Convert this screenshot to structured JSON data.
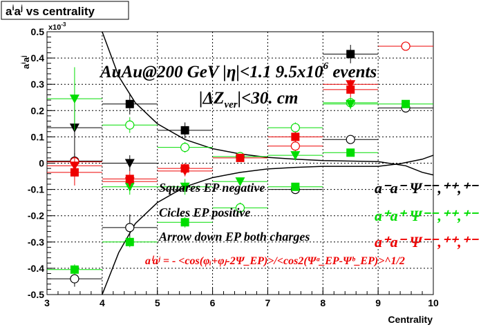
{
  "chart_data": {
    "type": "scatter",
    "title": "a^{i}a^{j} vs centrality",
    "xlabel": "Centrality",
    "ylabel": "a^{i}a^{j}",
    "y_exponent": "x10^{-3}",
    "xlim": [
      3,
      10
    ],
    "ylim": [
      -0.5,
      0.5
    ],
    "x_ticks": [
      3,
      4,
      5,
      6,
      7,
      8,
      9,
      10
    ],
    "y_ticks": [
      -0.5,
      -0.4,
      -0.3,
      -0.2,
      -0.1,
      0,
      0.1,
      0.2,
      0.3,
      0.4,
      0.5
    ],
    "annotations": {
      "energy": "AuAu@200 GeV |η|<1.1 9.5x10",
      "energy_exp": "6",
      "energy_tail": " events",
      "zcut": "|ΔZ",
      "zcut_sub": "ver",
      "zcut_tail": "|<30. cm",
      "marker_squares": "Squares EP negative",
      "marker_circles": "Cicles EP positive",
      "marker_arrows": "Arrow down EP both charges",
      "formula": "aⁱaʲ = - <cos(φᵢ+φⱼ-2Ψ_EP)>/<cos2(Ψᵃ_EP-Ψᵇ_EP)>^1/2",
      "legend_mm": "a⁻a⁻  Ψ⁻⁻,⁺⁺,⁺⁻",
      "legend_pp": "a⁺a⁺  Ψ⁻⁻,⁺⁺,⁺⁻",
      "legend_pm": "a⁺a⁻  Ψ⁻⁻,⁺⁺,⁺⁻"
    },
    "colors": {
      "black": "#000000",
      "green": "#00dd00",
      "red": "#ee0000"
    },
    "series": [
      {
        "name": "a⁻a⁻ squares",
        "color": "black",
        "marker": "square",
        "points": [
          [
            8.5,
            0.415,
            0.035
          ]
        ]
      },
      {
        "color": "black",
        "marker": "square",
        "points": [
          [
            4.5,
            0.225,
            0.04
          ],
          [
            5.5,
            0.125,
            0.03
          ]
        ]
      },
      {
        "name": "a⁻a⁻ circles",
        "color": "black",
        "marker": "circle",
        "points": [
          [
            3.5,
            0.008,
            0.03
          ],
          [
            3.5,
            -0.44,
            0.03
          ],
          [
            4.5,
            -0.245,
            0.05
          ],
          [
            7.5,
            -0.1,
            0.01
          ],
          [
            8.5,
            0.09,
            0.01
          ],
          [
            9.5,
            0.21,
            0.01
          ]
        ]
      },
      {
        "name": "a⁻a⁻ arrows",
        "color": "black",
        "marker": "triangle-down",
        "points": [
          [
            3.5,
            0.135,
            0.11
          ],
          [
            4.5,
            0.0,
            0.03
          ]
        ]
      },
      {
        "name": "a⁺a⁺ squares",
        "color": "green",
        "marker": "square",
        "points": [
          [
            3.5,
            -0.405,
            0.02
          ],
          [
            4.5,
            -0.3,
            0.02
          ],
          [
            5.5,
            -0.225,
            0.02
          ],
          [
            7.5,
            -0.09,
            0.01
          ],
          [
            8.5,
            0.04,
            0.01
          ],
          [
            9.5,
            0.225,
            0.01
          ]
        ]
      },
      {
        "name": "a⁺a⁺ circles",
        "color": "green",
        "marker": "circle",
        "points": [
          [
            4.5,
            0.145,
            0.03
          ],
          [
            5.5,
            0.06,
            0.02
          ],
          [
            6.5,
            0.025,
            0.015
          ],
          [
            7.5,
            0.135,
            0.02
          ],
          [
            8.5,
            0.23,
            0.02
          ],
          [
            6.5,
            -0.17,
            0.02
          ]
        ]
      },
      {
        "name": "a⁺a⁺ arrows",
        "color": "green",
        "marker": "triangle-down",
        "points": [
          [
            3.5,
            0.245,
            0.12
          ],
          [
            4.5,
            -0.09,
            0.03
          ],
          [
            5.5,
            -0.09,
            0.03
          ],
          [
            6.5,
            -0.07,
            0.015
          ],
          [
            7.5,
            0.03,
            0.02
          ],
          [
            8.5,
            0.225,
            0.02
          ]
        ]
      },
      {
        "name": "a⁺a⁻ squares",
        "color": "red",
        "marker": "square",
        "points": [
          [
            3.5,
            -0.035,
            0.05
          ],
          [
            4.5,
            -0.06,
            0.03
          ],
          [
            5.5,
            -0.02,
            0.02
          ],
          [
            6.5,
            0.02,
            0.015
          ],
          [
            7.5,
            0.1,
            0.02
          ],
          [
            8.5,
            0.28,
            0.03
          ]
        ]
      },
      {
        "name": "a⁺a⁻ circles",
        "color": "red",
        "marker": "circle",
        "points": [
          [
            3.5,
            0.005,
            0.02
          ],
          [
            7.5,
            0.065,
            0.015
          ],
          [
            9.5,
            0.445,
            0.01
          ]
        ]
      },
      {
        "name": "a⁺a⁻ arrows",
        "color": "red",
        "marker": "triangle-down",
        "points": [
          [
            3.5,
            -0.01,
            0.03
          ],
          [
            4.5,
            -0.07,
            0.02
          ],
          [
            5.5,
            -0.03,
            0.02
          ],
          [
            8.5,
            0.3,
            0.02
          ]
        ]
      }
    ],
    "bands": {
      "upper": [
        [
          4.0,
          0.5
        ],
        [
          4.3,
          0.33
        ],
        [
          4.6,
          0.23
        ],
        [
          5.0,
          0.15
        ],
        [
          5.5,
          0.09
        ],
        [
          6.0,
          0.055
        ],
        [
          6.5,
          0.035
        ],
        [
          7.0,
          0.022
        ],
        [
          7.5,
          0.015
        ],
        [
          8.0,
          0.01
        ],
        [
          8.5,
          0.008
        ],
        [
          9.0,
          0.006
        ],
        [
          9.5,
          -0.01
        ],
        [
          9.8,
          -0.035
        ],
        [
          10.0,
          -0.045
        ]
      ],
      "lower": [
        [
          4.0,
          -0.5
        ],
        [
          4.3,
          -0.34
        ],
        [
          4.6,
          -0.23
        ],
        [
          5.0,
          -0.15
        ],
        [
          5.5,
          -0.09
        ],
        [
          6.0,
          -0.055
        ],
        [
          6.5,
          -0.035
        ],
        [
          7.0,
          -0.022
        ],
        [
          7.5,
          -0.016
        ],
        [
          8.0,
          -0.012
        ],
        [
          8.5,
          -0.012
        ],
        [
          9.0,
          -0.012
        ],
        [
          9.4,
          -0.002
        ],
        [
          9.8,
          0.015
        ],
        [
          10.0,
          0.03
        ]
      ]
    }
  }
}
